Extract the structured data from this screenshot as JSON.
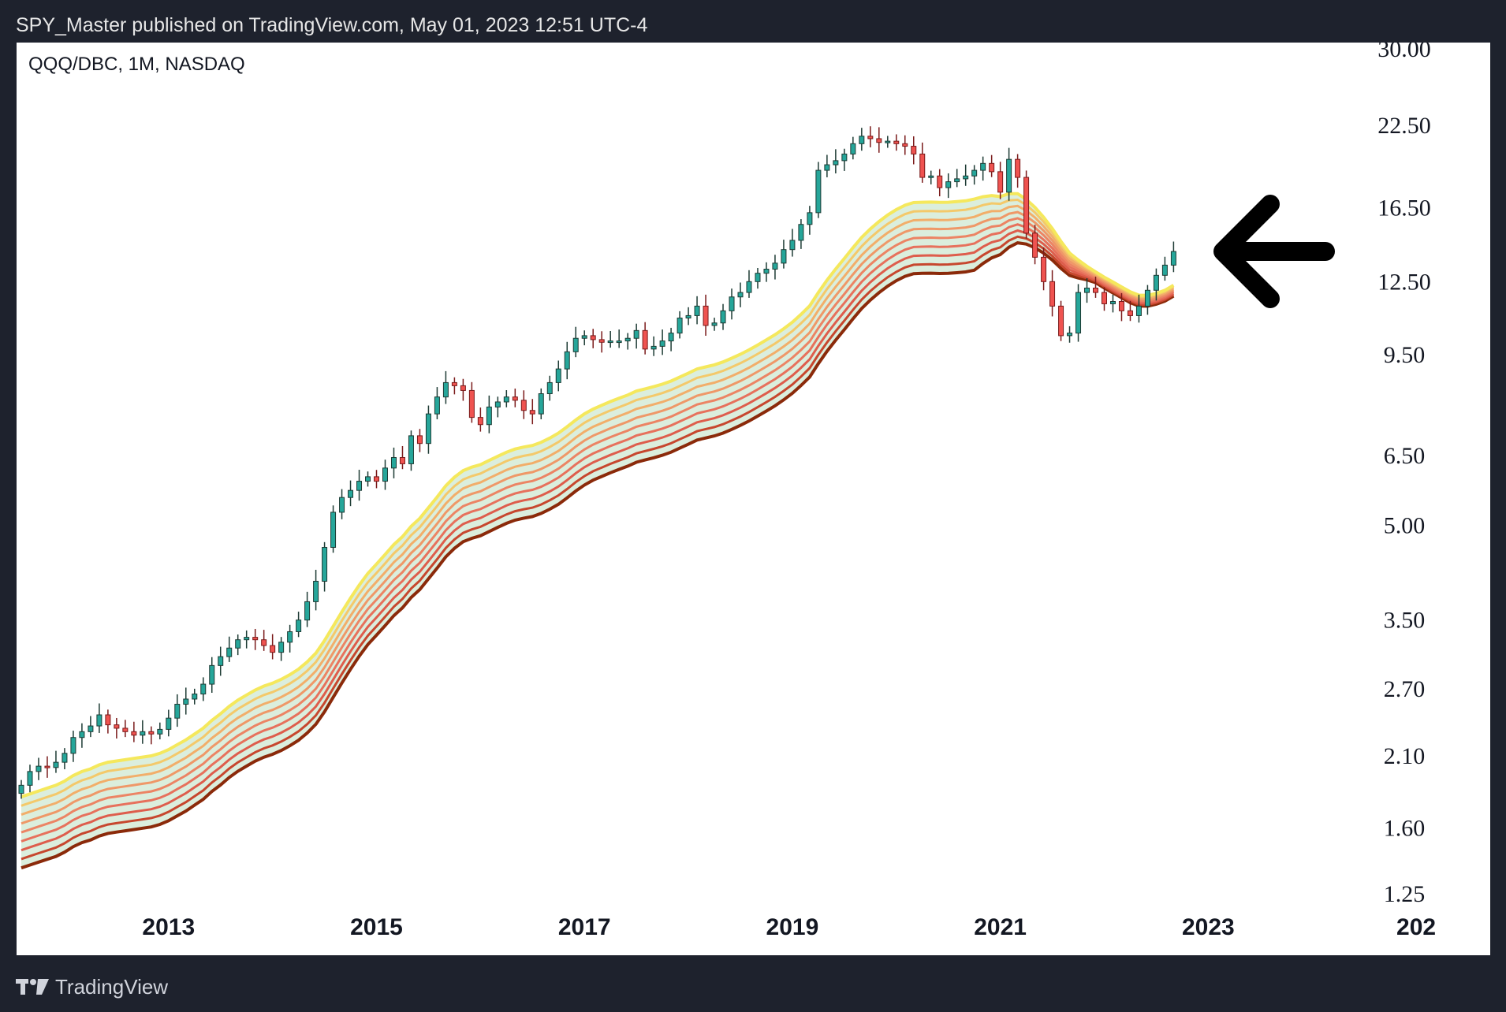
{
  "header": {
    "title": "SPY_Master published on TradingView.com, May 01, 2023 12:51 UTC-4"
  },
  "symbol_label": "QQQ/DBC, 1M, NASDAQ",
  "footer": {
    "brand": "TradingView",
    "logo_icon": "tradingview-logo-icon"
  },
  "annotation": {
    "icon": "left-arrow-icon",
    "color": "#000000"
  },
  "colors": {
    "background": "#1e222d",
    "panel": "#ffffff",
    "up": "#26a69a",
    "down": "#ef5350",
    "ribbon_fast": "#f5e85c",
    "ribbon_slow": "#8b2a0a",
    "ribbon_fill": "#cfe8d2"
  },
  "chart_data": {
    "type": "candlestick",
    "title": "QQQ/DBC",
    "interval": "1M",
    "exchange": "NASDAQ",
    "y_scale": "log",
    "ylim": [
      1.25,
      30.0
    ],
    "y_ticks": [
      30.0,
      22.5,
      16.5,
      12.5,
      9.5,
      6.5,
      5.0,
      3.5,
      2.7,
      2.1,
      1.6,
      1.25
    ],
    "y_tick_labels": [
      "30.00",
      "22.50",
      "16.50",
      "12.50",
      "9.50",
      "6.50",
      "5.00",
      "3.50",
      "2.70",
      "2.10",
      "1.60",
      "1.25"
    ],
    "x_tick_labels": [
      "2013",
      "2015",
      "2017",
      "2019",
      "2021",
      "2023",
      "202"
    ],
    "x_range": [
      "2011-08",
      "2025-06"
    ],
    "grid": false,
    "candles": {
      "start": "2011-08",
      "close": [
        1.88,
        1.98,
        2.02,
        2.01,
        2.05,
        2.12,
        2.25,
        2.3,
        2.35,
        2.45,
        2.36,
        2.33,
        2.3,
        2.27,
        2.3,
        2.28,
        2.32,
        2.42,
        2.55,
        2.6,
        2.65,
        2.75,
        2.95,
        3.05,
        3.15,
        3.25,
        3.28,
        3.25,
        3.18,
        3.1,
        3.22,
        3.35,
        3.5,
        3.75,
        4.05,
        4.6,
        5.25,
        5.55,
        5.7,
        5.9,
        6.0,
        5.9,
        6.2,
        6.45,
        6.3,
        7.0,
        6.8,
        7.6,
        8.1,
        8.55,
        8.45,
        8.3,
        7.5,
        7.3,
        7.8,
        7.95,
        8.1,
        8.0,
        7.7,
        7.6,
        8.2,
        8.55,
        9.0,
        9.6,
        10.1,
        10.2,
        10.05,
        9.95,
        10.0,
        10.0,
        10.1,
        10.4,
        9.7,
        9.8,
        10.0,
        10.3,
        10.9,
        11.0,
        11.4,
        10.6,
        10.7,
        11.2,
        11.8,
        12.0,
        12.5,
        12.9,
        13.1,
        13.4,
        14.1,
        14.6,
        15.5,
        16.2,
        19.0,
        19.4,
        19.7,
        20.2,
        21.0,
        21.6,
        21.4,
        21.1,
        21.2,
        21.0,
        20.8,
        20.2,
        18.5,
        18.6,
        17.8,
        18.2,
        18.4,
        18.6,
        19.0,
        19.5,
        18.9,
        17.5,
        19.8,
        18.5,
        15.0,
        13.7,
        12.5,
        11.4,
        10.2,
        10.3,
        12.0,
        12.2,
        12.0,
        11.5,
        11.6,
        11.2,
        11.0,
        11.4,
        12.1,
        12.8,
        13.3,
        14.0
      ],
      "wick_note": "OHLC estimated from candle bodies/wicks"
    },
    "ribbon": {
      "description": "Exponential moving average ribbon (fast yellow to slow dark red) with light green fill",
      "fast_ema": [
        1.8,
        1.82,
        1.84,
        1.86,
        1.88,
        1.91,
        1.95,
        1.98,
        2.0,
        2.03,
        2.05,
        2.06,
        2.07,
        2.08,
        2.09,
        2.1,
        2.12,
        2.15,
        2.19,
        2.23,
        2.28,
        2.33,
        2.4,
        2.46,
        2.53,
        2.59,
        2.64,
        2.69,
        2.73,
        2.76,
        2.8,
        2.85,
        2.91,
        2.99,
        3.09,
        3.24,
        3.42,
        3.61,
        3.8,
        3.99,
        4.17,
        4.32,
        4.48,
        4.65,
        4.79,
        4.98,
        5.13,
        5.34,
        5.56,
        5.8,
        5.99,
        6.14,
        6.22,
        6.28,
        6.38,
        6.48,
        6.58,
        6.66,
        6.71,
        6.75,
        6.83,
        6.94,
        7.07,
        7.24,
        7.43,
        7.6,
        7.74,
        7.85,
        7.96,
        8.06,
        8.16,
        8.28,
        8.35,
        8.42,
        8.5,
        8.6,
        8.73,
        8.86,
        9.0,
        9.07,
        9.14,
        9.24,
        9.37,
        9.51,
        9.67,
        9.85,
        10.04,
        10.24,
        10.47,
        10.73,
        11.05,
        11.41,
        12.0,
        12.57,
        13.11,
        13.64,
        14.2,
        14.76,
        15.24,
        15.67,
        16.06,
        16.39,
        16.66,
        16.83,
        16.85,
        16.86,
        16.84,
        16.85,
        16.89,
        16.94,
        17.05,
        17.2,
        17.28,
        17.21,
        17.4,
        17.4,
        17.03,
        16.52,
        15.92,
        15.26,
        14.54,
        13.92,
        13.56,
        13.24,
        12.97,
        12.71,
        12.48,
        12.25,
        12.03,
        11.88,
        11.87,
        11.96,
        12.1,
        12.33
      ]
    }
  }
}
